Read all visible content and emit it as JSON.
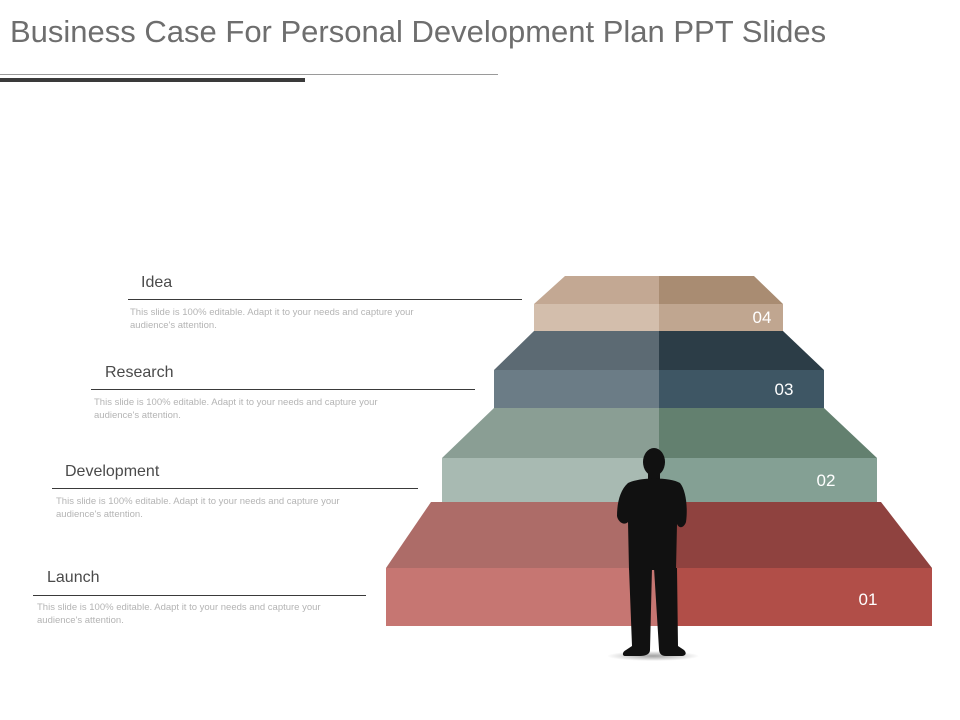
{
  "title": "Business Case For Personal Development Plan PPT Slides",
  "items": [
    {
      "label": "Idea",
      "description": "This slide is 100% editable. Adapt it to your needs and capture your audience's attention."
    },
    {
      "label": "Research",
      "description": "This slide is 100% editable. Adapt it to your needs and capture your audience's attention."
    },
    {
      "label": "Development",
      "description": "This slide is 100% editable. Adapt it to your needs and capture your audience's attention."
    },
    {
      "label": "Launch",
      "description": "This slide is 100% editable. Adapt it to your needs and capture your audience's attention."
    }
  ],
  "steps": [
    {
      "number": "04",
      "colors": {
        "top_left": "#c3a893",
        "top_right": "#a98c72",
        "front_left": "#d3beac",
        "front_right": "#c0a690"
      }
    },
    {
      "number": "03",
      "colors": {
        "top_left": "#5c6a73",
        "top_right": "#2c3d47",
        "front_left": "#6b7c86",
        "front_right": "#3e5664"
      }
    },
    {
      "number": "02",
      "colors": {
        "top_left": "#8a9e94",
        "top_right": "#63806f",
        "front_left": "#a8bab2",
        "front_right": "#84a094"
      }
    },
    {
      "number": "01",
      "colors": {
        "top_left": "#ad6c68",
        "top_right": "#8f423f",
        "front_left": "#c67672",
        "front_right": "#b14e48"
      }
    }
  ]
}
